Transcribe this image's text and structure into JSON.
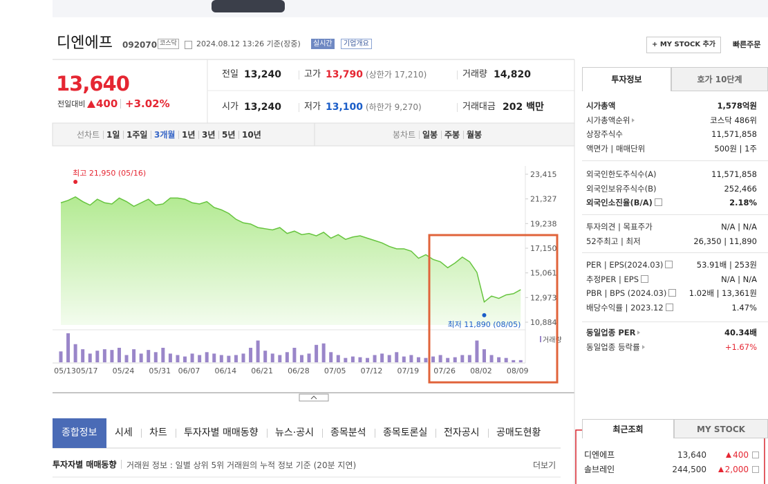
{
  "header": {
    "name": "디엔에프",
    "code": "092070",
    "market": "코스닥",
    "time": "2024.08.12 13:26 기준(장중)",
    "realtime": "실시간",
    "company_info": "기업개요",
    "my_stock_button": "+ MY STOCK 추가",
    "quick_order": "빠른주문"
  },
  "quote": {
    "price": "13,640",
    "change_label": "전일대비",
    "change": "400",
    "change_pct": "+3.02%",
    "rows": [
      [
        {
          "label": "전일",
          "value": "13,240"
        },
        {
          "label": "고가",
          "value": "13,790",
          "note": "(상한가 17,210)",
          "color": "up"
        },
        {
          "label": "거래량",
          "value": "14,820"
        }
      ],
      [
        {
          "label": "시가",
          "value": "13,240"
        },
        {
          "label": "저가",
          "value": "13,100",
          "note": "(하한가 9,270)",
          "color": "down"
        },
        {
          "label": "거래대금",
          "value": "202 백만"
        }
      ]
    ]
  },
  "chart_tabs": {
    "line_label": "선차트",
    "line": [
      "1일",
      "1주일",
      "3개월",
      "1년",
      "3년",
      "5년",
      "10년"
    ],
    "selected": 2,
    "candle_label": "봉차트",
    "candle": [
      "일봉",
      "주봉",
      "월봉"
    ]
  },
  "chart": {
    "type": "line",
    "color": "#66c43e",
    "categories": [
      "05/13",
      null,
      null,
      "05/17",
      null,
      null,
      null,
      null,
      "05/24",
      null,
      null,
      null,
      null,
      "05/31",
      null,
      null,
      null,
      "06/07",
      null,
      null,
      null,
      null,
      "06/14",
      null,
      null,
      null,
      null,
      "06/21",
      null,
      null,
      null,
      null,
      "06/28",
      null,
      null,
      null,
      null,
      "07/05",
      null,
      null,
      null,
      null,
      "07/12",
      null,
      null,
      null,
      null,
      "07/19",
      null,
      null,
      null,
      null,
      "07/26",
      null,
      null,
      null,
      null,
      "08/02",
      null,
      null,
      null,
      null,
      "08/09",
      null
    ],
    "values": [
      21000,
      21200,
      21500,
      21100,
      20800,
      21300,
      21000,
      20900,
      21400,
      21100,
      20700,
      21000,
      21300,
      20800,
      20900,
      21400,
      21400,
      21300,
      21000,
      20900,
      21100,
      20600,
      20400,
      20100,
      19600,
      19300,
      19200,
      18900,
      18800,
      18700,
      18900,
      18400,
      18600,
      18300,
      18400,
      18200,
      18500,
      18000,
      18300,
      17900,
      18100,
      18200,
      18000,
      17800,
      17600,
      17300,
      17100,
      17100,
      16900,
      16300,
      16600,
      16200,
      16000,
      15500,
      15900,
      16400,
      16000,
      15100,
      12600,
      13100,
      12900,
      13200,
      13300,
      13640
    ],
    "volumes": [
      75000,
      200000,
      125000,
      90000,
      60000,
      80000,
      90000,
      85000,
      100000,
      50000,
      90000,
      60000,
      85000,
      70000,
      100000,
      60000,
      50000,
      40000,
      60000,
      50000,
      70000,
      60000,
      50000,
      45000,
      50000,
      60000,
      100000,
      150000,
      80000,
      60000,
      50000,
      70000,
      100000,
      50000,
      60000,
      120000,
      130000,
      70000,
      50000,
      30000,
      40000,
      35000,
      30000,
      50000,
      60000,
      50000,
      70000,
      40000,
      50000,
      35000,
      30000,
      40000,
      50000,
      30000,
      35000,
      50000,
      50000,
      150000,
      90000,
      50000,
      35000,
      30000,
      15000,
      15000
    ],
    "ylim": [
      10884,
      23415
    ],
    "yticks": [
      {
        "value": 10884,
        "label": "10,884"
      },
      {
        "value": 12973,
        "label": "12,973"
      },
      {
        "value": 15061,
        "label": "15,061"
      },
      {
        "value": 17150,
        "label": "17,150"
      },
      {
        "value": 19238,
        "label": "19,238"
      },
      {
        "value": 21327,
        "label": "21,327"
      },
      {
        "value": 23415,
        "label": "23,415"
      }
    ],
    "high": {
      "value": 21950,
      "index": 2,
      "label": "최고 21,950 (05/16)"
    },
    "low": {
      "value": 11890,
      "index": 58,
      "label": "최저 11,890 (08/05)"
    },
    "volume_label": "거래량"
  },
  "nav_tabs": {
    "items": [
      "종합정보",
      "시세",
      "차트",
      "투자자별 매매동향",
      "뉴스·공시",
      "종목분석",
      "종목토론실",
      "전자공시",
      "공매도현황"
    ],
    "selected": 0
  },
  "section": {
    "title": "투자자별 매매동향",
    "desc": "거래원 정보 : 일별 상위 5위 거래원의 누적 정보 기준 (20분 지연)",
    "more": "더보기"
  },
  "sidebar": {
    "tabs": [
      "투자정보",
      "호가 10단계"
    ],
    "groups": [
      [
        {
          "label": "시가총액",
          "value": "1,578억원",
          "bold": true
        },
        {
          "label": "시가총액순위",
          "value": "코스닥 486위",
          "arrow": true
        },
        {
          "label": "상장주식수",
          "value": "11,571,858"
        },
        {
          "label": "액면가 | 매매단위",
          "value": "500원 | 1주"
        }
      ],
      [
        {
          "label": "외국인한도주식수(A)",
          "value": "11,571,858"
        },
        {
          "label": "외국인보유주식수(B)",
          "value": "252,466"
        },
        {
          "label": "외국인소진율(B/A)",
          "value": "2.18%",
          "bold": true,
          "help": true
        }
      ],
      [
        {
          "label": "투자의견 | 목표주가",
          "value": "N/A | N/A"
        },
        {
          "label": "52주최고 | 최저",
          "value": "26,350 | 11,890"
        }
      ],
      [
        {
          "label": "PER | EPS(2024.03)",
          "value": "53.91배 | 253원",
          "help": true
        },
        {
          "label": "추정PER | EPS",
          "value": "N/A | N/A",
          "help": true
        },
        {
          "label": "PBR | BPS (2024.03)",
          "value": "1.02배 | 13,361원",
          "help": true
        },
        {
          "label": "배당수익률 | 2023.12",
          "value": "1.47%",
          "help": true
        }
      ],
      [
        {
          "label": "동일업종 PER",
          "value": "40.34배",
          "bold": true,
          "arrow": true
        },
        {
          "label": "동일업종 등락률",
          "value": "+1.67%",
          "arrow": true,
          "color": "up"
        }
      ]
    ]
  },
  "recent": {
    "tabs": [
      "최근조회",
      "MY STOCK"
    ],
    "items": [
      {
        "name": "디엔에프",
        "price": "13,640",
        "change": "400"
      },
      {
        "name": "솔브레인",
        "price": "244,500",
        "change": "2,000"
      }
    ]
  }
}
